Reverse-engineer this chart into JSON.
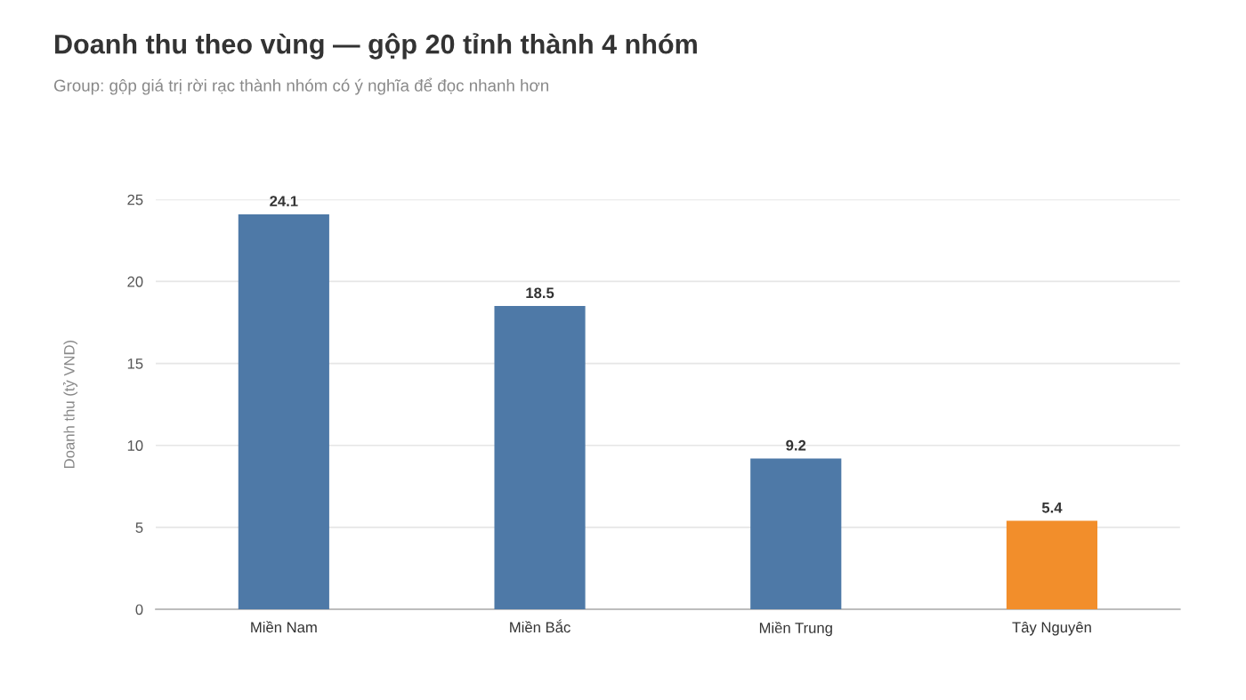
{
  "chart_data": {
    "type": "bar",
    "title": "Doanh thu theo vùng — gộp 20 tỉnh thành 4 nhóm",
    "subtitle": "Group: gộp giá trị rời rạc thành nhóm có ý nghĩa để đọc nhanh hơn",
    "ylabel": "Doanh thu (tỷ VND)",
    "categories": [
      "Miền Nam",
      "Miền Bắc",
      "Miền Trung",
      "Tây Nguyên"
    ],
    "values": [
      24.1,
      18.5,
      9.2,
      5.4
    ],
    "colors": [
      "#4e79a7",
      "#4e79a7",
      "#4e79a7",
      "#f28e2b"
    ],
    "ylim": [
      0,
      25
    ],
    "yticks": [
      0,
      5,
      10,
      15,
      20,
      25
    ],
    "grid": "y",
    "data_labels": true,
    "legend": false
  }
}
